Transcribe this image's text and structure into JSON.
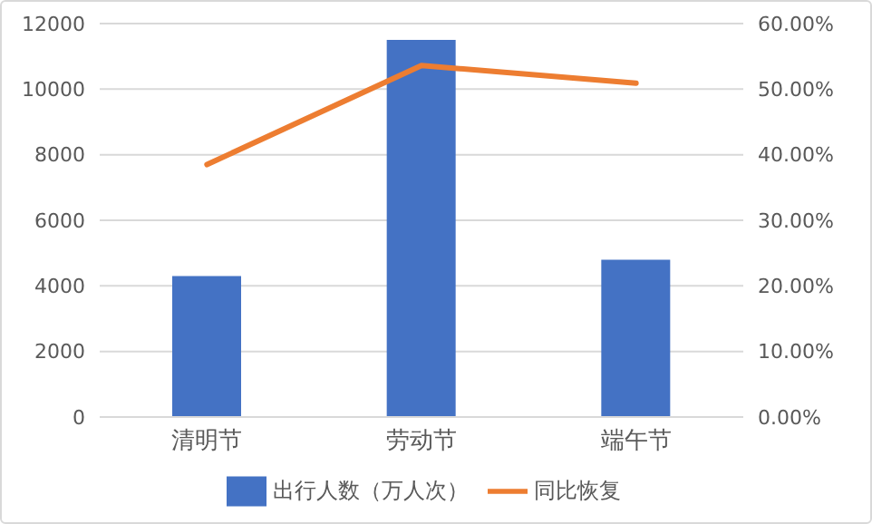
{
  "chart_data": {
    "type": "bar",
    "categories": [
      "清明节",
      "劳动节",
      "端午节"
    ],
    "series": [
      {
        "name": "出行人数（万人次）",
        "color": "#4472c4",
        "values": [
          4300,
          11500,
          4800
        ]
      },
      {
        "name": "同比恢复",
        "type": "line",
        "axis": "y2",
        "color": "#ed7d31",
        "values": [
          38.5,
          53.6,
          50.9
        ]
      }
    ],
    "ylim": [
      0,
      12000
    ],
    "yticks": [
      0,
      2000,
      4000,
      6000,
      8000,
      10000,
      12000
    ],
    "y2lim": [
      0,
      60
    ],
    "y2ticks": [
      {
        "value": 0,
        "label": "0.00%"
      },
      {
        "value": 10,
        "label": "10.00%"
      },
      {
        "value": 20,
        "label": "20.00%"
      },
      {
        "value": 30,
        "label": "30.00%"
      },
      {
        "value": 40,
        "label": "40.00%"
      },
      {
        "value": 50,
        "label": "50.00%"
      },
      {
        "value": 60,
        "label": "60.00%"
      }
    ],
    "grid": "y",
    "legend": "bottom",
    "marker": "none",
    "line_style": "solid"
  }
}
